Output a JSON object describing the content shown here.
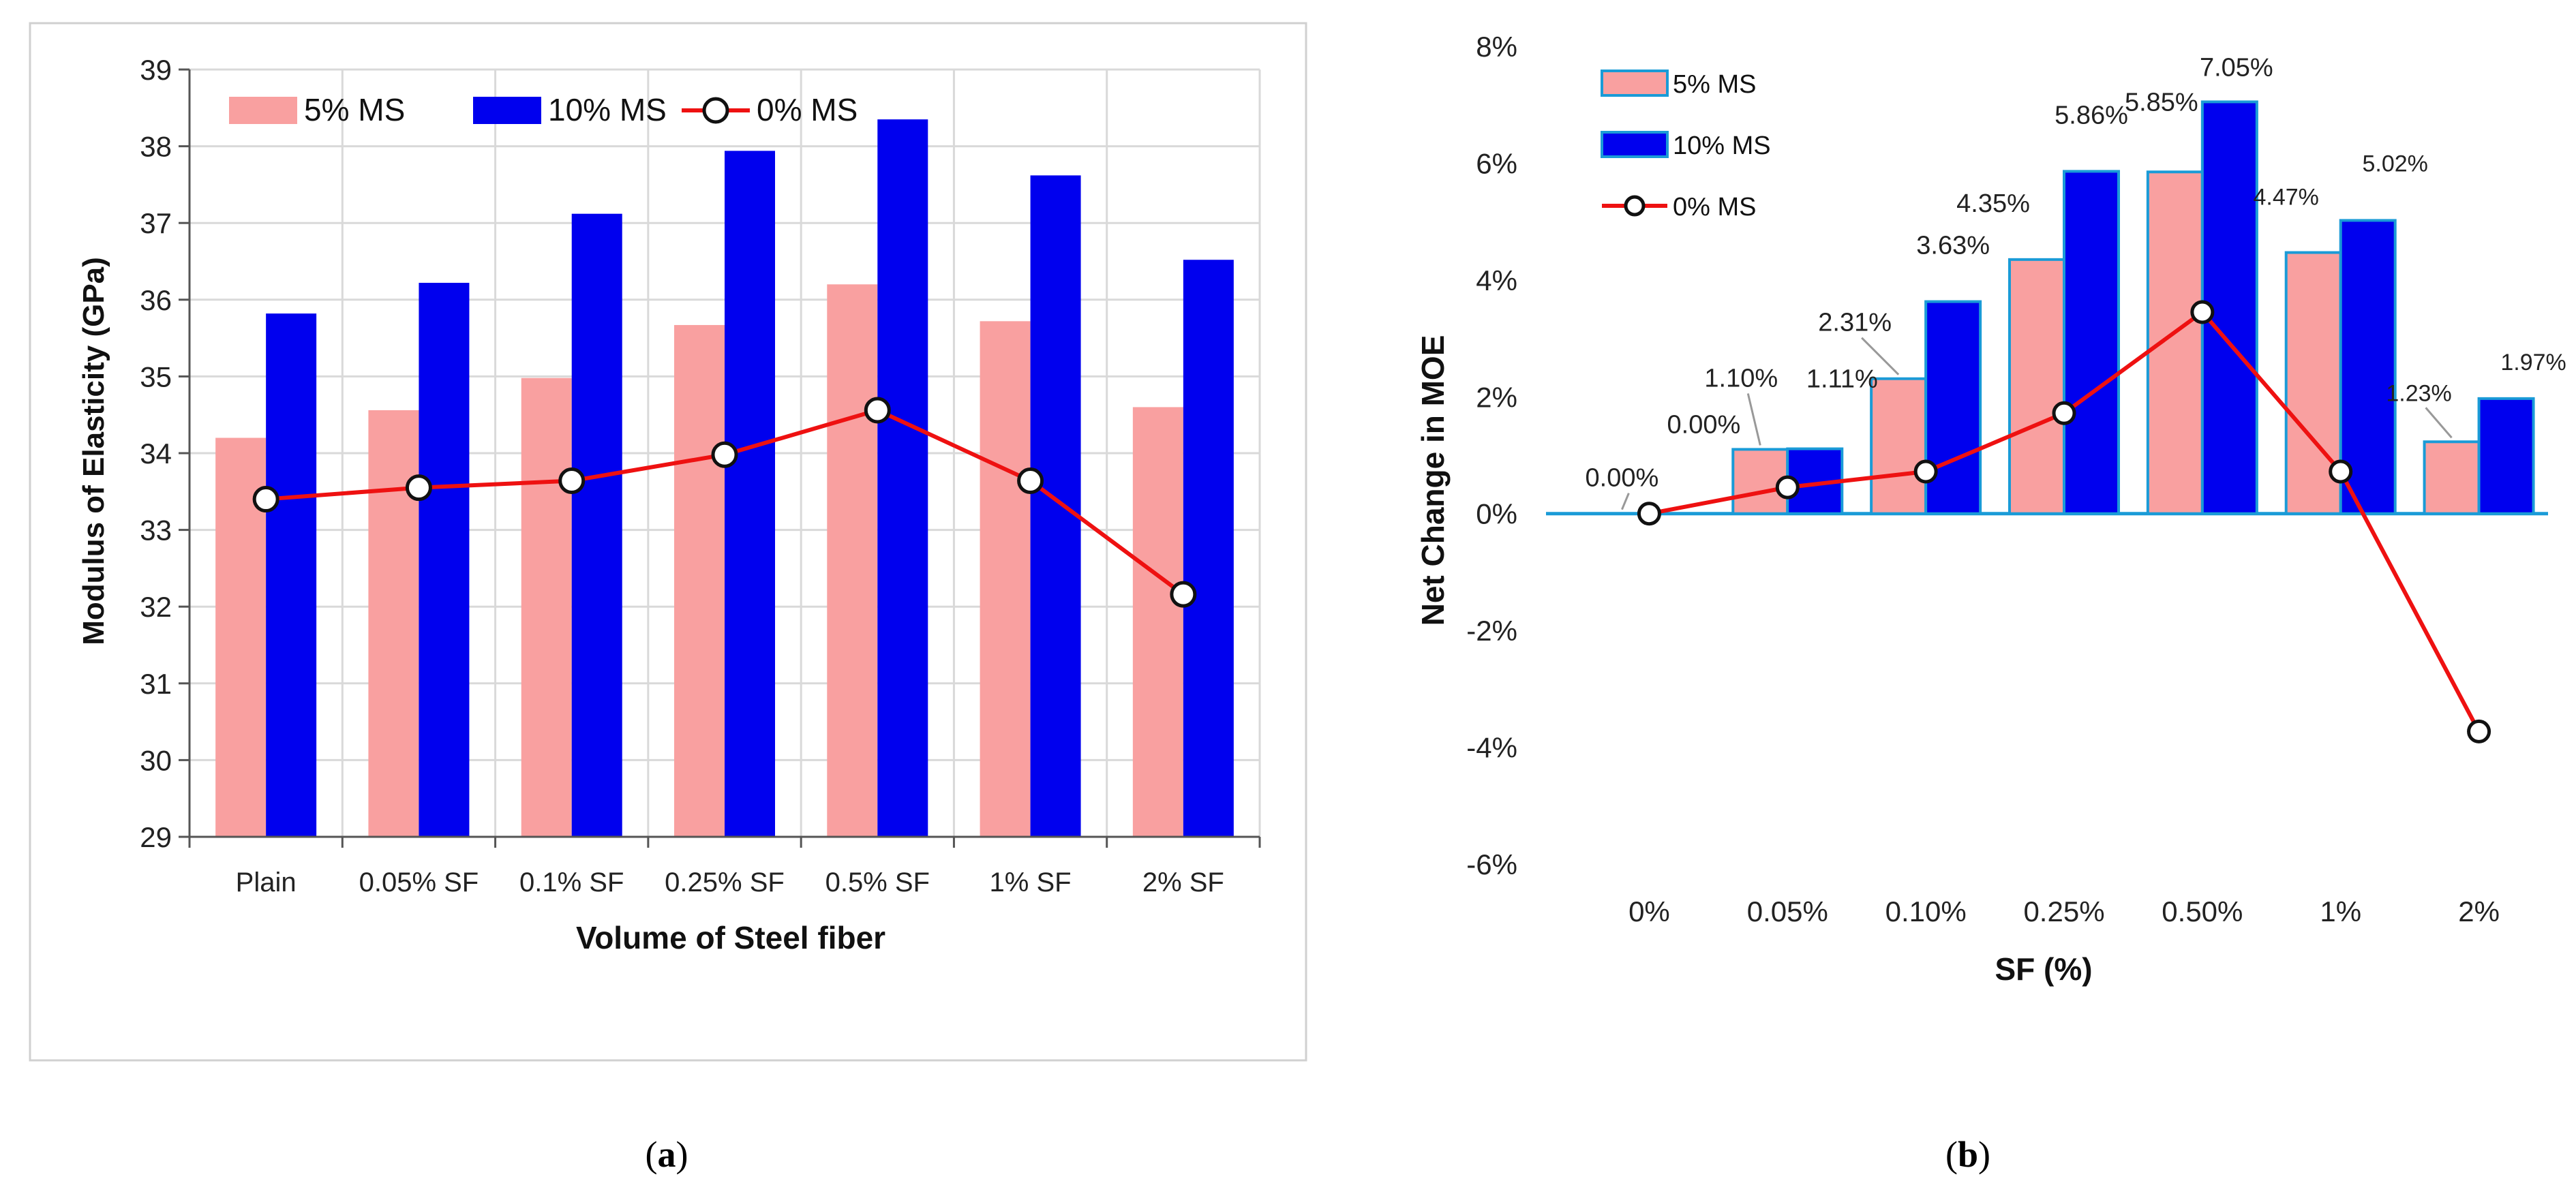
{
  "captions": {
    "a": "a",
    "b": "b"
  },
  "colors": {
    "ms5": "#f9a0a0",
    "ms10": "#0000ee",
    "ms0_line": "#ee1111",
    "ms0_marker_fill": "#ffffff",
    "axis": "#555555",
    "grid": "#d9d9d9",
    "bar_border_b": "#1a9bd7",
    "zero_line_b": "#1a9bd7"
  },
  "chart_data": [
    {
      "id": "a",
      "type": "bar",
      "xlabel": "Volume of Steel fiber",
      "ylabel": "Modulus of Elasticity (GPa)",
      "categories": [
        "Plain",
        "0.05% SF",
        "0.1% SF",
        "0.25% SF",
        "0.5% SF",
        "1% SF",
        "2% SF"
      ],
      "ylim": [
        29,
        39
      ],
      "yticks": [
        "29",
        "30",
        "31",
        "32",
        "33",
        "34",
        "35",
        "36",
        "37",
        "38",
        "39"
      ],
      "grid": true,
      "legend_position": "top",
      "series": [
        {
          "name": "5% MS",
          "kind": "bar",
          "values": [
            34.2,
            34.56,
            34.98,
            35.67,
            36.2,
            35.72,
            34.6
          ]
        },
        {
          "name": "10% MS",
          "kind": "bar",
          "values": [
            35.82,
            36.22,
            37.12,
            37.94,
            38.35,
            37.62,
            36.52
          ]
        },
        {
          "name": "0% MS",
          "kind": "line",
          "values": [
            33.4,
            33.55,
            33.64,
            33.98,
            34.56,
            33.64,
            32.16
          ]
        }
      ]
    },
    {
      "id": "b",
      "type": "bar",
      "xlabel": "SF (%)",
      "ylabel": "Net Change in MOE",
      "categories": [
        "0%",
        "0.05%",
        "0.10%",
        "0.25%",
        "0.50%",
        "1%",
        "2%"
      ],
      "ylim": [
        -6,
        8
      ],
      "yticks": [
        "-6%",
        "-4%",
        "-2%",
        "0%",
        "2%",
        "4%",
        "6%",
        "8%"
      ],
      "grid": false,
      "legend_position": "top-left",
      "series": [
        {
          "name": "5% MS",
          "kind": "bar",
          "values": [
            0.0,
            1.1,
            2.31,
            4.35,
            5.85,
            4.47,
            1.23
          ],
          "labels": [
            "0.00%",
            "1.10%",
            "2.31%",
            "4.35%",
            "5.85%",
            "4.47%",
            "1.23%"
          ]
        },
        {
          "name": "10% MS",
          "kind": "bar",
          "values": [
            0.0,
            1.11,
            3.63,
            5.86,
            7.05,
            5.02,
            1.97
          ],
          "labels": [
            "0.00%",
            "1.11%",
            "3.63%",
            "5.86%",
            "7.05%",
            "5.02%",
            "1.97%"
          ]
        },
        {
          "name": "0% MS",
          "kind": "line",
          "values": [
            0.0,
            0.45,
            0.72,
            1.72,
            3.45,
            0.72,
            -3.73
          ]
        }
      ]
    }
  ]
}
